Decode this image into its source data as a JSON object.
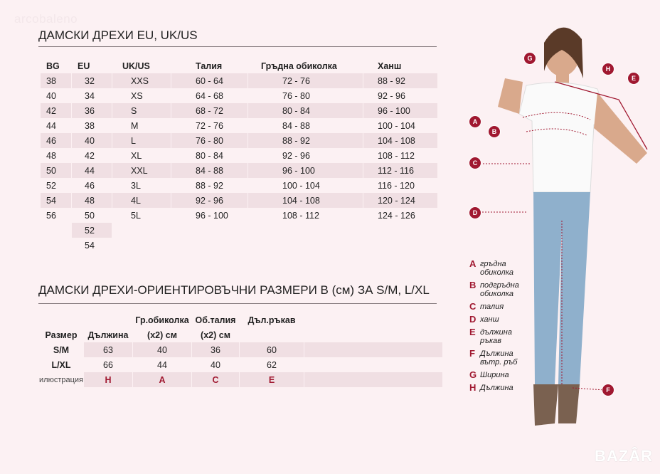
{
  "watermark": "arcobaleno",
  "table1": {
    "title": "ДАМСКИ ДРЕХИ EU, UK/US",
    "headers": [
      "BG",
      "EU",
      "UK/US",
      "Талия",
      "Гръдна обиколка",
      "Ханш"
    ],
    "rows": [
      [
        "38",
        "32",
        "XXS",
        "60 - 64",
        "72 - 76",
        "88 - 92"
      ],
      [
        "40",
        "34",
        "XS",
        "64 - 68",
        "76 - 80",
        "92 - 96"
      ],
      [
        "42",
        "36",
        "S",
        "68 - 72",
        "80 - 84",
        "96 - 100"
      ],
      [
        "44",
        "38",
        "M",
        "72 - 76",
        "84 - 88",
        "100 - 104"
      ],
      [
        "46",
        "40",
        "L",
        "76 - 80",
        "88 - 92",
        "104 - 108"
      ],
      [
        "48",
        "42",
        "XL",
        "80 - 84",
        "92 - 96",
        "108 - 112"
      ],
      [
        "50",
        "44",
        "XXL",
        "84 - 88",
        "96 - 100",
        "112 - 116"
      ],
      [
        "52",
        "46",
        "3L",
        "88 - 92",
        "100 - 104",
        "116 - 120"
      ],
      [
        "54",
        "48",
        "4L",
        "92 - 96",
        "104 - 108",
        "120 - 124"
      ],
      [
        "56",
        "50",
        "5L",
        "96 - 100",
        "108 - 112",
        "124 - 126"
      ],
      [
        "",
        "52",
        "",
        "",
        "",
        ""
      ],
      [
        "",
        "54",
        "",
        "",
        "",
        ""
      ]
    ]
  },
  "table2": {
    "title": "ДАМСКИ ДРЕХИ-ОРИЕНТИРОВЪЧНИ РАЗМЕРИ В (см) ЗА S/M, L/XL",
    "header_top": [
      "",
      "",
      "Гр.обиколка",
      "Об.талия",
      "Дъл.ръкав"
    ],
    "header_bottom": [
      "Размер",
      "Дължина",
      "(x2) см",
      "(x2) см",
      ""
    ],
    "rows": [
      [
        "S/M",
        "63",
        "40",
        "36",
        "60"
      ],
      [
        "L/XL",
        "66",
        "44",
        "40",
        "62"
      ]
    ],
    "illustration": [
      "илюстрация",
      "H",
      "A",
      "C",
      "E"
    ]
  },
  "legend": [
    {
      "key": "A",
      "label": "гръдна обиколка"
    },
    {
      "key": "B",
      "label": "подгръдна обиколка"
    },
    {
      "key": "C",
      "label": "талия"
    },
    {
      "key": "D",
      "label": "ханш"
    },
    {
      "key": "E",
      "label": "дължина ръкав"
    },
    {
      "key": "F",
      "label": "Дължина вътр. ръб"
    },
    {
      "key": "G",
      "label": "Ширина"
    },
    {
      "key": "H",
      "label": "Дължина"
    }
  ],
  "markers": [
    "G",
    "H",
    "E",
    "A",
    "B",
    "C",
    "D",
    "F"
  ],
  "logo": "BAZAR",
  "colors": {
    "accent": "#a01830",
    "background": "#fcf1f3",
    "row_shade": "#f0dfe3"
  }
}
